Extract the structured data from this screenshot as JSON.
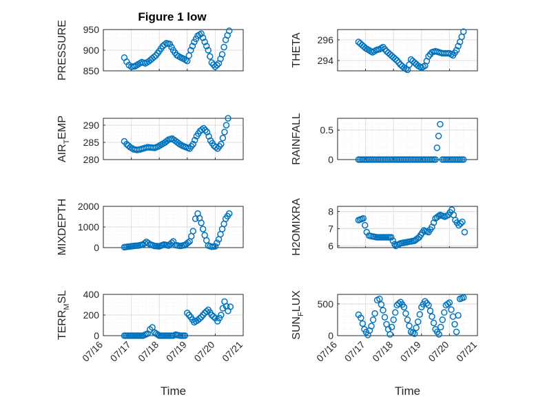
{
  "figure_title": "Figure 1 low",
  "colors": {
    "marker": "#0072BD",
    "axes": "#262626",
    "grid": "#dedede"
  },
  "x_ticks": [
    "07/16",
    "07/17",
    "07/18",
    "07/19",
    "07/20",
    "07/21"
  ],
  "chart_data": [
    {
      "type": "scatter",
      "ylabel": "PRESSURE",
      "ylabel_sub": "",
      "ylabel_tail": "",
      "title": "Figure 1 low",
      "xlabel": "",
      "x_range": [
        "07/16",
        "07/21"
      ],
      "ylim": [
        850,
        950
      ],
      "yticks": [
        850,
        900,
        950
      ],
      "grid": "on",
      "series": [
        {
          "x": [
            "07/16 18:00",
            "07/16 20:00",
            "07/16 22:00",
            "07/17 00:00",
            "07/17 03:00",
            "07/17 06:00",
            "07/17 09:00",
            "07/17 12:00",
            "07/17 15:00",
            "07/17 18:00",
            "07/17 21:00",
            "07/18 00:00",
            "07/18 03:00",
            "07/18 06:00",
            "07/18 09:00",
            "07/18 12:00",
            "07/18 15:00",
            "07/18 18:00",
            "07/18 21:00",
            "07/19 00:00",
            "07/19 03:00",
            "07/19 06:00",
            "07/19 09:00",
            "07/19 12:00",
            "07/19 15:00",
            "07/19 18:00",
            "07/19 21:00",
            "07/20 00:00",
            "07/20 03:00",
            "07/20 06:00",
            "07/20 09:00",
            "07/20 12:00"
          ],
          "y": [
            882,
            872,
            864,
            860,
            861,
            866,
            871,
            868,
            873,
            880,
            887,
            898,
            910,
            917,
            915,
            900,
            888,
            883,
            879,
            874,
            900,
            920,
            935,
            940,
            920,
            900,
            870,
            860,
            868,
            890,
            925,
            947
          ]
        }
      ]
    },
    {
      "type": "scatter",
      "ylabel": "THETA",
      "ylabel_sub": "",
      "ylabel_tail": "",
      "xlabel": "",
      "x_range": [
        "07/16",
        "07/21"
      ],
      "ylim": [
        293,
        297
      ],
      "yticks": [
        294,
        296
      ],
      "grid": "on",
      "series": [
        {
          "x": [
            "07/16 18:00",
            "07/16 21:00",
            "07/17 00:00",
            "07/17 03:00",
            "07/17 06:00",
            "07/17 09:00",
            "07/17 12:00",
            "07/17 15:00",
            "07/17 18:00",
            "07/17 21:00",
            "07/18 00:00",
            "07/18 03:00",
            "07/18 06:00",
            "07/18 09:00",
            "07/18 12:00",
            "07/18 15:00",
            "07/18 18:00",
            "07/18 21:00",
            "07/19 00:00",
            "07/19 03:00",
            "07/19 06:00",
            "07/19 09:00",
            "07/19 12:00",
            "07/19 15:00",
            "07/19 18:00",
            "07/19 21:00",
            "07/20 00:00",
            "07/20 03:00",
            "07/20 06:00",
            "07/20 09:00",
            "07/20 12:00"
          ],
          "y": [
            295.8,
            295.5,
            295.2,
            295.0,
            294.8,
            295.0,
            295.1,
            295.3,
            294.9,
            294.6,
            294.3,
            294.0,
            293.6,
            293.3,
            293.1,
            294.1,
            293.8,
            293.5,
            293.3,
            293.5,
            294.4,
            294.8,
            294.9,
            294.8,
            294.7,
            294.7,
            294.7,
            294.5,
            295.0,
            295.8,
            296.8
          ]
        }
      ]
    },
    {
      "type": "scatter",
      "ylabel": "AIR",
      "ylabel_sub": "T",
      "ylabel_tail": "EMP",
      "xlabel": "",
      "x_range": [
        "07/16",
        "07/21"
      ],
      "ylim": [
        280,
        292
      ],
      "yticks": [
        280,
        285,
        290
      ],
      "grid": "on",
      "series": [
        {
          "x": [
            "07/16 18:00",
            "07/16 20:00",
            "07/16 23:00",
            "07/17 02:00",
            "07/17 05:00",
            "07/17 08:00",
            "07/17 11:00",
            "07/17 14:00",
            "07/17 17:00",
            "07/17 20:00",
            "07/17 23:00",
            "07/18 02:00",
            "07/18 05:00",
            "07/18 08:00",
            "07/18 11:00",
            "07/18 14:00",
            "07/18 17:00",
            "07/18 20:00",
            "07/18 23:00",
            "07/19 02:00",
            "07/19 05:00",
            "07/19 08:00",
            "07/19 11:00",
            "07/19 14:00",
            "07/19 17:00",
            "07/19 20:00",
            "07/19 23:00",
            "07/20 02:00",
            "07/20 05:00",
            "07/20 08:00",
            "07/20 11:00"
          ],
          "y": [
            285.3,
            284.5,
            283.6,
            283.0,
            282.8,
            283.0,
            283.3,
            283.6,
            283.5,
            283.4,
            283.8,
            284.4,
            285.0,
            285.8,
            286.1,
            285.4,
            284.6,
            284.0,
            283.6,
            283.2,
            284.5,
            286.8,
            288.3,
            289.1,
            288.0,
            285.5,
            284.0,
            283.2,
            284.5,
            288.0,
            292.0
          ]
        }
      ]
    },
    {
      "type": "scatter",
      "ylabel": "RAINFALL",
      "ylabel_sub": "",
      "ylabel_tail": "",
      "xlabel": "",
      "x_range": [
        "07/16",
        "07/21"
      ],
      "ylim": [
        0,
        0.7
      ],
      "yticks": [
        0,
        0.5
      ],
      "grid": "on",
      "series": [
        {
          "x": [
            "07/16 18:00",
            "07/17 00:00",
            "07/17 06:00",
            "07/17 12:00",
            "07/17 18:00",
            "07/18 00:00",
            "07/18 06:00",
            "07/18 12:00",
            "07/18 18:00",
            "07/19 00:00",
            "07/19 06:00",
            "07/19 12:00",
            "07/19 16:00",
            "07/19 18:00",
            "07/20 00:00",
            "07/20 06:00",
            "07/20 12:00"
          ],
          "y": [
            0,
            0,
            0,
            0,
            0,
            0,
            0,
            0,
            0,
            0,
            0,
            0,
            0.6,
            0,
            0,
            0,
            0
          ]
        }
      ]
    },
    {
      "type": "scatter",
      "ylabel": "MIXDEPTH",
      "ylabel_sub": "",
      "ylabel_tail": "",
      "xlabel": "",
      "x_range": [
        "07/16",
        "07/21"
      ],
      "ylim": [
        0,
        2000
      ],
      "yticks": [
        0,
        1000,
        2000
      ],
      "grid": "on",
      "series": [
        {
          "x": [
            "07/16 18:00",
            "07/16 22:00",
            "07/17 02:00",
            "07/17 06:00",
            "07/17 10:00",
            "07/17 13:00",
            "07/17 16:00",
            "07/17 20:00",
            "07/18 00:00",
            "07/18 04:00",
            "07/18 08:00",
            "07/18 12:00",
            "07/18 14:00",
            "07/18 18:00",
            "07/18 22:00",
            "07/19 02:00",
            "07/19 05:00",
            "07/19 07:00",
            "07/19 09:00",
            "07/19 12:00",
            "07/19 15:00",
            "07/19 18:00",
            "07/19 21:00",
            "07/20 00:00",
            "07/20 03:00",
            "07/20 06:00",
            "07/20 09:00",
            "07/20 12:00"
          ],
          "y": [
            20,
            50,
            80,
            100,
            150,
            280,
            160,
            80,
            60,
            150,
            100,
            300,
            120,
            80,
            120,
            300,
            800,
            1400,
            1650,
            1200,
            600,
            100,
            40,
            60,
            400,
            900,
            1400,
            1650
          ]
        }
      ]
    },
    {
      "type": "scatter",
      "ylabel": "H2OMIXRA",
      "ylabel_sub": "",
      "ylabel_tail": "",
      "xlabel": "",
      "x_range": [
        "07/16",
        "07/21"
      ],
      "ylim": [
        5.9,
        8.3
      ],
      "yticks": [
        6,
        7,
        8
      ],
      "grid": "on",
      "series": [
        {
          "x": [
            "07/16 18:00",
            "07/16 22:00",
            "07/17 01:00",
            "07/17 03:00",
            "07/17 06:00",
            "07/17 10:00",
            "07/17 14:00",
            "07/17 18:00",
            "07/17 22:00",
            "07/18 01:00",
            "07/18 02:00",
            "07/18 06:00",
            "07/18 10:00",
            "07/18 14:00",
            "07/18 18:00",
            "07/18 22:00",
            "07/19 02:00",
            "07/19 06:00",
            "07/19 09:00",
            "07/19 12:00",
            "07/19 16:00",
            "07/19 20:00",
            "07/19 23:00",
            "07/20 02:00",
            "07/20 05:00",
            "07/20 08:00",
            "07/20 11:00",
            "07/20 13:00"
          ],
          "y": [
            7.5,
            7.6,
            6.8,
            6.6,
            6.55,
            6.5,
            6.5,
            6.5,
            6.5,
            6.1,
            6.0,
            6.15,
            6.2,
            6.25,
            6.3,
            6.5,
            6.9,
            6.8,
            7.1,
            7.6,
            7.8,
            7.7,
            7.8,
            8.1,
            7.5,
            7.2,
            7.4,
            6.8
          ]
        }
      ]
    },
    {
      "type": "scatter",
      "ylabel": "TERR",
      "ylabel_sub": "M",
      "ylabel_tail": "SL",
      "xlabel": "Time",
      "x_range": [
        "07/16",
        "07/21"
      ],
      "ylim": [
        0,
        400
      ],
      "yticks": [
        0,
        200,
        400
      ],
      "grid": "on",
      "series": [
        {
          "x": [
            "07/16 18:00",
            "07/16 22:00",
            "07/17 02:00",
            "07/17 06:00",
            "07/17 10:00",
            "07/17 14:00",
            "07/17 16:00",
            "07/17 18:00",
            "07/17 20:00",
            "07/18 00:00",
            "07/18 04:00",
            "07/18 08:00",
            "07/18 12:00",
            "07/18 14:00",
            "07/18 18:00",
            "07/18 22:00",
            "07/19 00:00",
            "07/19 03:00",
            "07/19 06:00",
            "07/19 09:00",
            "07/19 12:00",
            "07/19 15:00",
            "07/19 18:00",
            "07/19 21:00",
            "07/20 00:00",
            "07/20 02:00",
            "07/20 05:00",
            "07/20 08:00",
            "07/20 11:00",
            "07/20 13:00"
          ],
          "y": [
            0,
            0,
            0,
            0,
            0,
            20,
            60,
            80,
            30,
            0,
            0,
            0,
            0,
            10,
            0,
            0,
            220,
            180,
            130,
            150,
            180,
            220,
            250,
            200,
            170,
            140,
            200,
            330,
            240,
            280
          ]
        }
      ]
    },
    {
      "type": "scatter",
      "ylabel": "SUN",
      "ylabel_sub": "F",
      "ylabel_tail": "LUX",
      "xlabel": "Time",
      "x_range": [
        "07/16",
        "07/21"
      ],
      "ylim": [
        0,
        650
      ],
      "yticks": [
        0,
        500
      ],
      "grid": "on",
      "series": [
        {
          "x": [
            "07/16 18:00",
            "07/16 20:00",
            "07/16 23:00",
            "07/17 02:00",
            "07/17 05:00",
            "07/17 08:00",
            "07/17 10:00",
            "07/17 12:00",
            "07/17 15:00",
            "07/17 18:00",
            "07/17 21:00",
            "07/18 00:00",
            "07/18 03:00",
            "07/18 06:00",
            "07/18 09:00",
            "07/18 12:00",
            "07/18 15:00",
            "07/18 18:00",
            "07/18 21:00",
            "07/19 00:00",
            "07/19 03:00",
            "07/19 06:00",
            "07/19 09:00",
            "07/19 12:00",
            "07/19 15:00",
            "07/19 18:00",
            "07/19 21:00",
            "07/20 00:00",
            "07/20 03:00",
            "07/20 06:00",
            "07/20 09:00",
            "07/20 12:00"
          ],
          "y": [
            330,
            280,
            100,
            10,
            150,
            350,
            560,
            580,
            400,
            180,
            20,
            250,
            480,
            530,
            450,
            250,
            60,
            30,
            220,
            450,
            540,
            480,
            300,
            100,
            20,
            250,
            480,
            520,
            300,
            60,
            580,
            600
          ]
        }
      ]
    }
  ]
}
